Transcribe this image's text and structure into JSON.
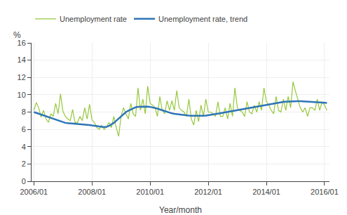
{
  "chart_data": {
    "type": "line",
    "xlabel": "Year/month",
    "ylabel": "%",
    "x": [
      2006,
      2006.0833333333333,
      2006.1666666666667,
      2006.25,
      2006.3333333333333,
      2006.4166666666667,
      2006.5,
      2006.5833333333333,
      2006.6666666666667,
      2006.75,
      2006.8333333333333,
      2006.9166666666667,
      2007,
      2007.0833333333333,
      2007.1666666666667,
      2007.25,
      2007.3333333333333,
      2007.4166666666667,
      2007.5,
      2007.5833333333333,
      2007.6666666666667,
      2007.75,
      2007.8333333333333,
      2007.9166666666667,
      2008,
      2008.0833333333333,
      2008.1666666666667,
      2008.25,
      2008.3333333333333,
      2008.4166666666667,
      2008.5,
      2008.5833333333333,
      2008.6666666666667,
      2008.75,
      2008.8333333333333,
      2008.9166666666667,
      2009,
      2009.0833333333333,
      2009.1666666666667,
      2009.25,
      2009.3333333333333,
      2009.4166666666667,
      2009.5,
      2009.5833333333333,
      2009.6666666666667,
      2009.75,
      2009.8333333333333,
      2009.9166666666667,
      2010,
      2010.0833333333333,
      2010.1666666666667,
      2010.25,
      2010.3333333333333,
      2010.4166666666667,
      2010.5,
      2010.5833333333333,
      2010.6666666666667,
      2010.75,
      2010.8333333333333,
      2010.9166666666667,
      2011,
      2011.0833333333333,
      2011.1666666666667,
      2011.25,
      2011.3333333333333,
      2011.4166666666667,
      2011.5,
      2011.5833333333333,
      2011.6666666666667,
      2011.75,
      2011.8333333333333,
      2011.9166666666667,
      2012,
      2012.0833333333333,
      2012.1666666666667,
      2012.25,
      2012.3333333333333,
      2012.4166666666667,
      2012.5,
      2012.5833333333333,
      2012.6666666666667,
      2012.75,
      2012.8333333333333,
      2012.9166666666667,
      2013,
      2013.0833333333333,
      2013.1666666666667,
      2013.25,
      2013.3333333333333,
      2013.4166666666667,
      2013.5,
      2013.5833333333333,
      2013.6666666666667,
      2013.75,
      2013.8333333333333,
      2013.9166666666667,
      2014,
      2014.0833333333333,
      2014.1666666666667,
      2014.25,
      2014.3333333333333,
      2014.4166666666667,
      2014.5,
      2014.5833333333333,
      2014.6666666666667,
      2014.75,
      2014.8333333333333,
      2014.9166666666667,
      2015,
      2015.0833333333333,
      2015.1666666666667,
      2015.25,
      2015.3333333333333,
      2015.4166666666667,
      2015.5,
      2015.5833333333333,
      2015.6666666666667,
      2015.75,
      2015.8333333333333,
      2015.9166666666667,
      2016,
      2016.0833333333333
    ],
    "series": [
      {
        "name": "Unemployment rate",
        "color": "#96c83c",
        "values": [
          8.2,
          9.1,
          8.5,
          7.4,
          8.2,
          7.2,
          6.8,
          7.8,
          7.5,
          9.0,
          7.8,
          10.1,
          8.1,
          7.5,
          7.2,
          7.0,
          8.3,
          6.8,
          6.8,
          7.5,
          7.0,
          8.5,
          7.2,
          8.9,
          7.1,
          6.8,
          6.2,
          6.0,
          6.5,
          6.0,
          6.3,
          6.8,
          6.2,
          7.5,
          6.2,
          5.2,
          7.5,
          8.5,
          7.8,
          7.2,
          9.0,
          7.8,
          7.5,
          10.8,
          8.2,
          9.5,
          7.8,
          11.0,
          9.0,
          8.8,
          8.5,
          7.5,
          9.8,
          8.2,
          7.8,
          9.3,
          8.2,
          9.3,
          8.2,
          10.5,
          8.5,
          8.2,
          8.0,
          7.5,
          9.5,
          7.2,
          6.5,
          8.2,
          6.9,
          8.8,
          7.5,
          9.5,
          8.0,
          8.0,
          7.8,
          7.5,
          9.2,
          7.5,
          7.5,
          8.5,
          7.2,
          9.0,
          7.5,
          10.8,
          8.5,
          8.2,
          8.0,
          7.5,
          9.2,
          8.0,
          7.8,
          8.8,
          8.0,
          9.2,
          8.2,
          10.8,
          9.2,
          8.8,
          8.2,
          7.8,
          9.8,
          8.2,
          8.0,
          9.5,
          8.2,
          9.8,
          8.5,
          11.5,
          10.4,
          9.5,
          8.5,
          8.0,
          8.5,
          7.5,
          8.5,
          8.5,
          8.2,
          9.5,
          8.2,
          9.2,
          8.8,
          8.2
        ]
      },
      {
        "name": "Unemployment rate, trend",
        "color": "#2e75b6",
        "values": [
          8.0,
          7.9,
          7.8,
          7.7,
          7.6,
          7.5,
          7.4,
          7.3,
          7.2,
          7.1,
          7.0,
          6.9,
          6.8,
          6.75,
          6.72,
          6.7,
          6.68,
          6.67,
          6.65,
          6.63,
          6.6,
          6.58,
          6.55,
          6.5,
          6.45,
          6.4,
          6.35,
          6.32,
          6.3,
          6.28,
          6.3,
          6.4,
          6.55,
          6.75,
          7.0,
          7.25,
          7.55,
          7.8,
          8.0,
          8.15,
          8.3,
          8.45,
          8.55,
          8.6,
          8.62,
          8.63,
          8.63,
          8.63,
          8.6,
          8.55,
          8.48,
          8.4,
          8.3,
          8.2,
          8.1,
          8.0,
          7.92,
          7.85,
          7.8,
          7.76,
          7.72,
          7.68,
          7.65,
          7.62,
          7.6,
          7.58,
          7.57,
          7.56,
          7.56,
          7.57,
          7.58,
          7.6,
          7.63,
          7.67,
          7.72,
          7.77,
          7.82,
          7.87,
          7.92,
          7.97,
          8.02,
          8.07,
          8.12,
          8.17,
          8.22,
          8.27,
          8.32,
          8.37,
          8.42,
          8.47,
          8.52,
          8.57,
          8.62,
          8.67,
          8.72,
          8.78,
          8.85,
          8.92,
          8.98,
          9.03,
          9.08,
          9.12,
          9.15,
          9.18,
          9.2,
          9.22,
          9.23,
          9.24,
          9.25,
          9.25,
          9.25,
          9.24,
          9.23,
          9.22,
          9.2,
          9.18,
          9.16,
          9.14,
          9.12,
          9.1,
          9.08,
          9.06
        ]
      }
    ],
    "xlim": [
      2005.92,
      2016.17
    ],
    "xticks": [
      {
        "value": 2006,
        "label": "2006/01"
      },
      {
        "value": 2008,
        "label": "2008/01"
      },
      {
        "value": 2010,
        "label": "2010/01"
      },
      {
        "value": 2012,
        "label": "2012/01"
      },
      {
        "value": 2014,
        "label": "2014/01"
      },
      {
        "value": 2016,
        "label": "2016/01"
      }
    ],
    "ylim": [
      0,
      16
    ],
    "yticks": [
      0,
      2,
      4,
      6,
      8,
      10,
      12,
      14,
      16
    ],
    "grid": true,
    "legend": "top"
  }
}
